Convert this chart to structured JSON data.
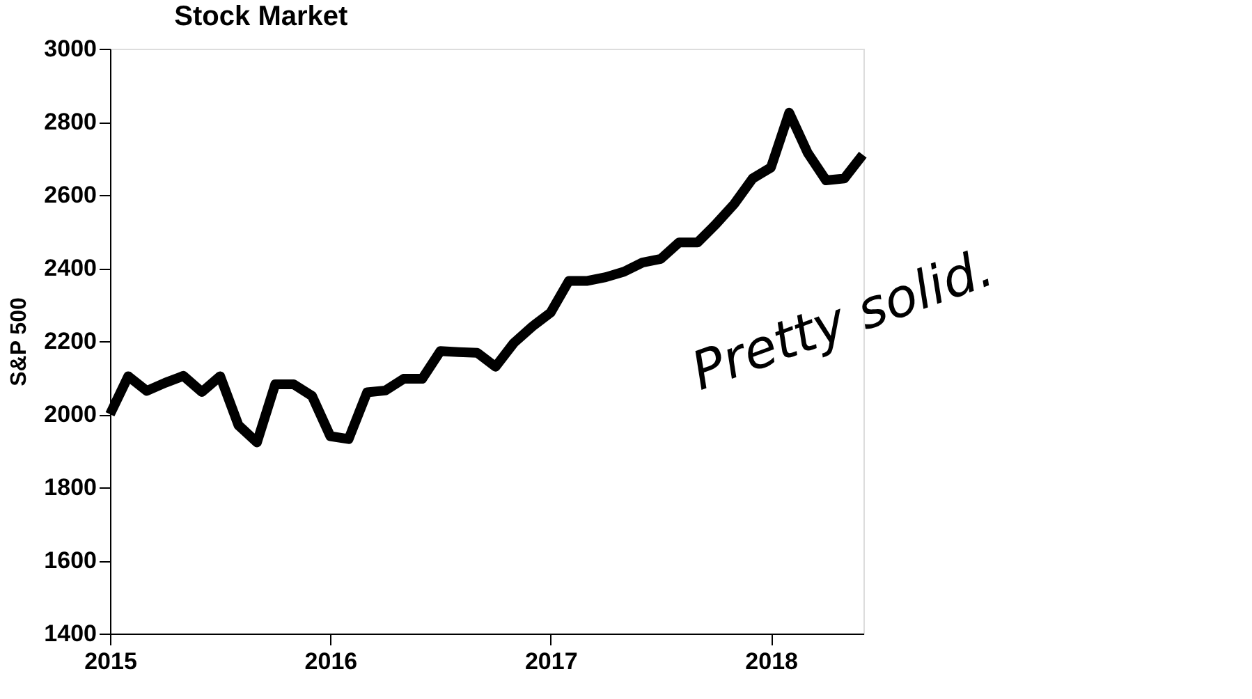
{
  "chart_data": {
    "type": "line",
    "title": "Stock Market",
    "ylabel": "S&P 500",
    "x": [
      2015.0,
      2015.083,
      2015.167,
      2015.25,
      2015.333,
      2015.417,
      2015.5,
      2015.583,
      2015.667,
      2015.75,
      2015.833,
      2015.917,
      2016.0,
      2016.083,
      2016.167,
      2016.25,
      2016.333,
      2016.417,
      2016.5,
      2016.583,
      2016.667,
      2016.75,
      2016.833,
      2016.917,
      2017.0,
      2017.083,
      2017.167,
      2017.25,
      2017.333,
      2017.417,
      2017.5,
      2017.583,
      2017.667,
      2017.75,
      2017.833,
      2017.917,
      2018.0,
      2018.083,
      2018.167,
      2018.25,
      2018.333,
      2018.417
    ],
    "series": [
      {
        "color": "#000000",
        "values": [
          2000,
          2104,
          2064,
          2086,
          2105,
          2061,
          2104,
          1970,
          1923,
          2082,
          2082,
          2050,
          1940,
          1932,
          2060,
          2065,
          2097,
          2097,
          2173,
          2170,
          2168,
          2130,
          2195,
          2240,
          2278,
          2365,
          2365,
          2375,
          2390,
          2415,
          2425,
          2470,
          2470,
          2520,
          2575,
          2645,
          2675,
          2825,
          2715,
          2640,
          2645,
          2710
        ]
      }
    ],
    "xlim": [
      2015,
      2018.42
    ],
    "xticks": [
      2015,
      2016,
      2017,
      2018
    ],
    "ylim": [
      1400,
      3000
    ],
    "yticks": [
      1400,
      1600,
      1800,
      2000,
      2200,
      2400,
      2600,
      2800,
      3000
    ],
    "grid": false,
    "marker": "none",
    "line_style": "solid",
    "annotations": [
      "Pretty solid."
    ]
  }
}
